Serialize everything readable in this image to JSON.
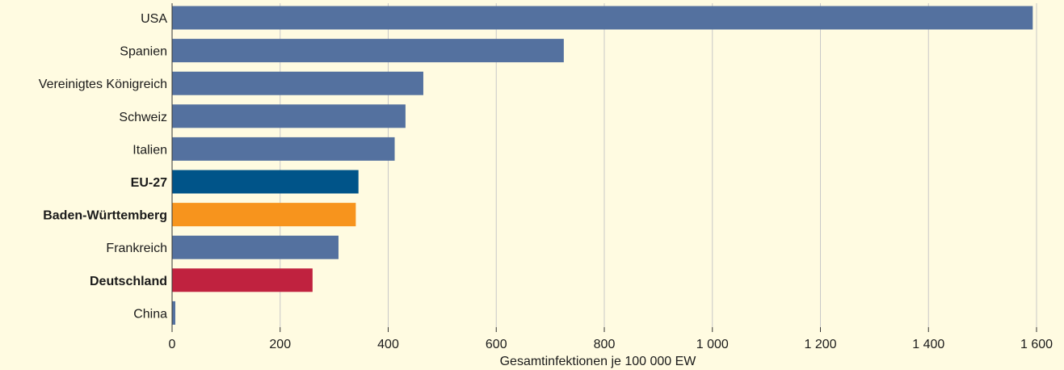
{
  "chart_data": {
    "type": "bar",
    "orientation": "horizontal",
    "categories": [
      "USA",
      "Spanien",
      "Vereinigtes Königreich",
      "Schweiz",
      "Italien",
      "EU-27",
      "Baden-Württemberg",
      "Frankreich",
      "Deutschland",
      "China"
    ],
    "values": [
      1593,
      725,
      465,
      432,
      412,
      345,
      340,
      308,
      260,
      6
    ],
    "bold_categories": [
      "EU-27",
      "Baden-Württemberg",
      "Deutschland"
    ],
    "bar_colors": [
      "#54719f",
      "#54719f",
      "#54719f",
      "#54719f",
      "#54719f",
      "#005489",
      "#f7941d",
      "#54719f",
      "#c0223f",
      "#54719f"
    ],
    "xlabel": "Gesamtinfektionen je 100 000 EW",
    "xlim": [
      0,
      1600
    ],
    "xticks": [
      0,
      200,
      400,
      600,
      800,
      1000,
      1200,
      1400,
      1600
    ],
    "xtick_labels": [
      "0",
      "200",
      "400",
      "600",
      "800",
      "1 000",
      "1 200",
      "1 400",
      "1 600"
    ],
    "grid": "vertical",
    "colors": {
      "background": "#fffbe1",
      "default_bar": "#54719f",
      "gridline": "#c8c8c8"
    }
  }
}
